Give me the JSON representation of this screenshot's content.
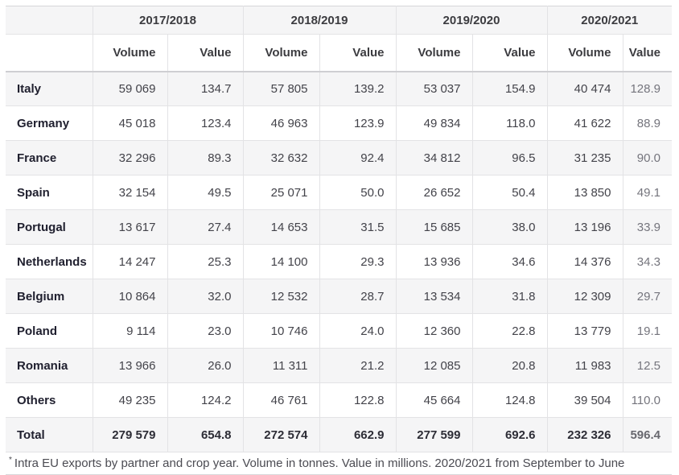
{
  "chart_data": {
    "type": "table",
    "column_groups": [
      "2017/2018",
      "2018/2019",
      "2019/2020",
      "2020/2021"
    ],
    "sub_columns": [
      "Volume",
      "Value"
    ],
    "corner_label": "",
    "rows": [
      {
        "name": "Italy",
        "cells": [
          "59 069",
          "134.7",
          "57 805",
          "139.2",
          "53 037",
          "154.9",
          "40 474",
          "128.9"
        ]
      },
      {
        "name": "Germany",
        "cells": [
          "45 018",
          "123.4",
          "46 963",
          "123.9",
          "49 834",
          "118.0",
          "41 622",
          "88.9"
        ]
      },
      {
        "name": "France",
        "cells": [
          "32 296",
          "89.3",
          "32 632",
          "92.4",
          "34 812",
          "96.5",
          "31 235",
          "90.0"
        ]
      },
      {
        "name": "Spain",
        "cells": [
          "32 154",
          "49.5",
          "25 071",
          "50.0",
          "26 652",
          "50.4",
          "13 850",
          "49.1"
        ]
      },
      {
        "name": "Portugal",
        "cells": [
          "13 617",
          "27.4",
          "14 653",
          "31.5",
          "15 685",
          "38.0",
          "13 196",
          "33.9"
        ]
      },
      {
        "name": "Netherlands",
        "cells": [
          "14 247",
          "25.3",
          "14 100",
          "29.3",
          "13 936",
          "34.6",
          "14 376",
          "34.3"
        ]
      },
      {
        "name": "Belgium",
        "cells": [
          "10 864",
          "32.0",
          "12 532",
          "28.7",
          "13 534",
          "31.8",
          "12 309",
          "29.7"
        ]
      },
      {
        "name": "Poland",
        "cells": [
          "9 114",
          "23.0",
          "10 746",
          "24.0",
          "12 360",
          "22.8",
          "13 779",
          "19.1"
        ]
      },
      {
        "name": "Romania",
        "cells": [
          "13 966",
          "26.0",
          "11 311",
          "21.2",
          "12 085",
          "20.8",
          "11 983",
          "12.5"
        ]
      },
      {
        "name": "Others",
        "cells": [
          "49 235",
          "124.2",
          "46 761",
          "122.8",
          "45 664",
          "124.8",
          "39 504",
          "110.0"
        ]
      },
      {
        "name": "Total",
        "cells": [
          "279 579",
          "654.8",
          "272 574",
          "662.9",
          "277 599",
          "692.6",
          "232 326",
          "596.4"
        ],
        "is_total": true
      }
    ],
    "footnote_marker": "*",
    "footnote": "Intra EU exports by partner and crop year. Volume in tonnes. Value in millions. 2020/2021 from September to June",
    "layout": {
      "striped": true,
      "muted_last_column": true,
      "legend_position": "none",
      "grid": "light-borders"
    },
    "colors": {
      "stripe_bg": "#f5f5f6",
      "header_bg": "#f5f5f6",
      "border": "#e3e3e5",
      "header_divider": "#cfcfd2",
      "text_dark": "#20202f",
      "text_number": "#43434a",
      "text_muted": "#75757d",
      "footnote_text": "#4b4b52"
    }
  }
}
